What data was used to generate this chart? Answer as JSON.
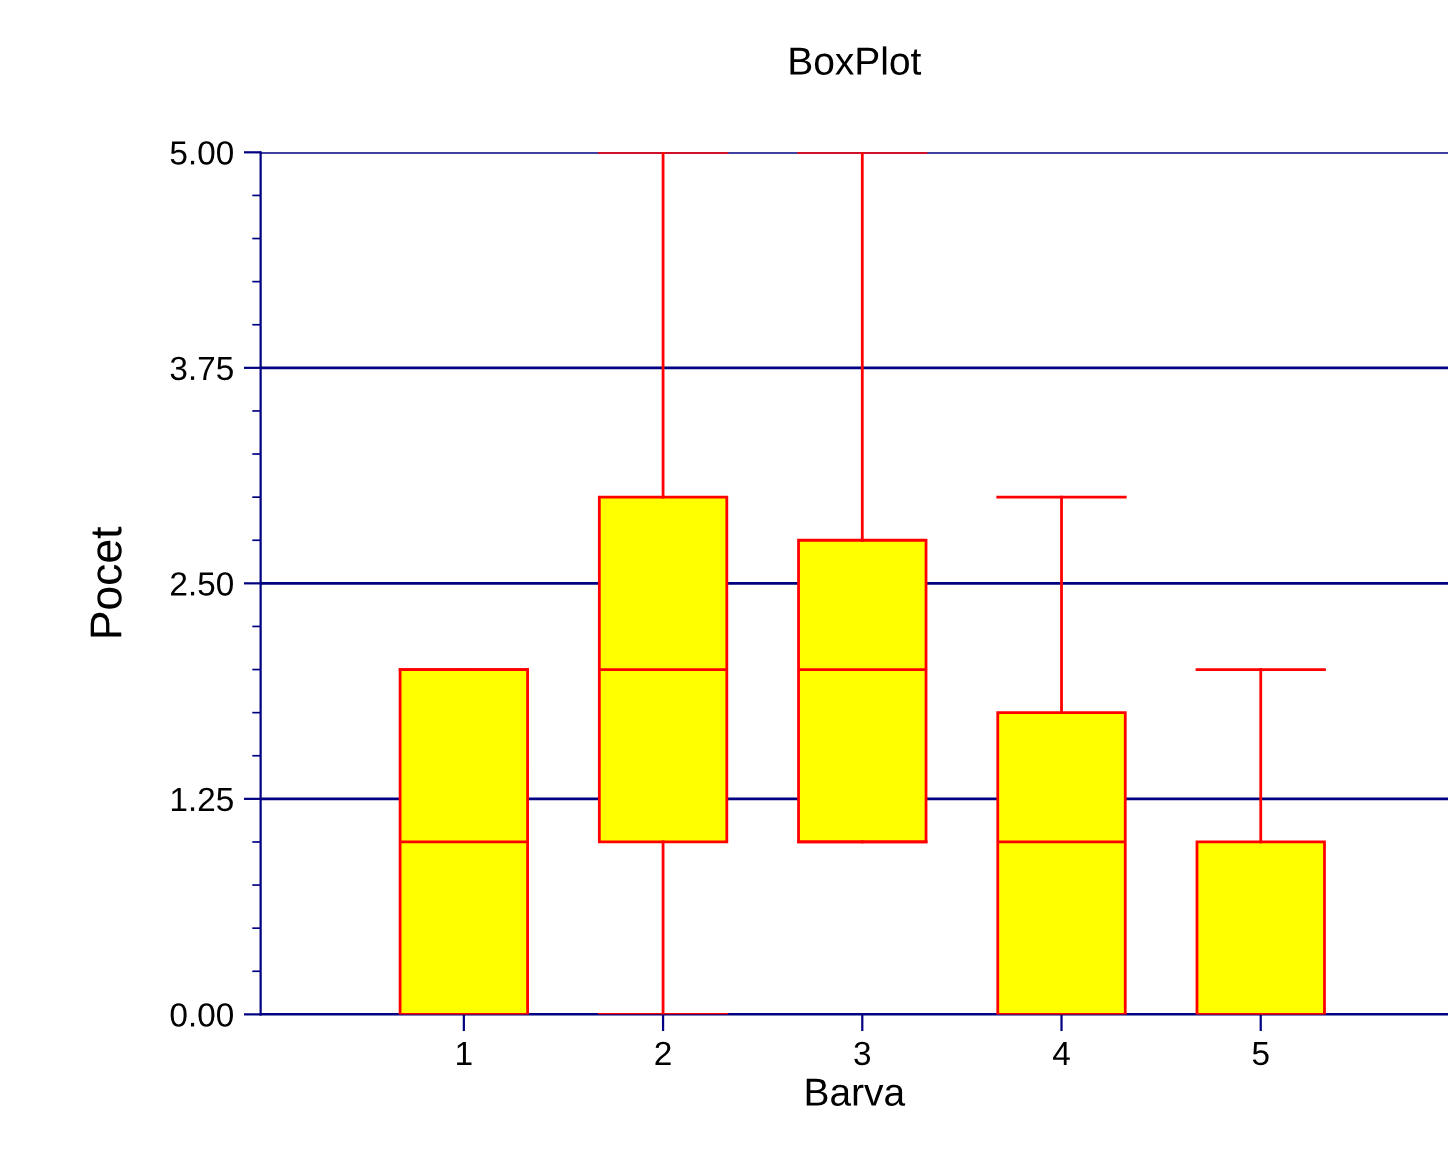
{
  "chart_data": {
    "type": "box",
    "title": "BoxPlot",
    "xlabel": "Barva",
    "ylabel": "Pocet",
    "categories": [
      "1",
      "2",
      "3",
      "4",
      "5"
    ],
    "boxes": [
      {
        "low": 0,
        "q1": 0,
        "median": 1,
        "q3": 2,
        "high": 2
      },
      {
        "low": 0,
        "q1": 1,
        "median": 2,
        "q3": 3,
        "high": 5
      },
      {
        "low": 1,
        "q1": 1,
        "median": 2,
        "q3": 2.75,
        "high": 5
      },
      {
        "low": 0,
        "q1": 0,
        "median": 1,
        "q3": 1.75,
        "high": 3
      },
      {
        "low": 0,
        "q1": 0,
        "median": 0,
        "q3": 1,
        "high": 2
      }
    ],
    "color": "#ffff00",
    "ylim": [
      0,
      5
    ],
    "yticks": [
      {
        "value": 0,
        "label": "0.00"
      },
      {
        "value": 1.25,
        "label": "1.25"
      },
      {
        "value": 2.5,
        "label": "2.50"
      },
      {
        "value": 3.75,
        "label": "3.75"
      },
      {
        "value": 5,
        "label": "5.00"
      }
    ],
    "grid": "y",
    "legend": false
  }
}
